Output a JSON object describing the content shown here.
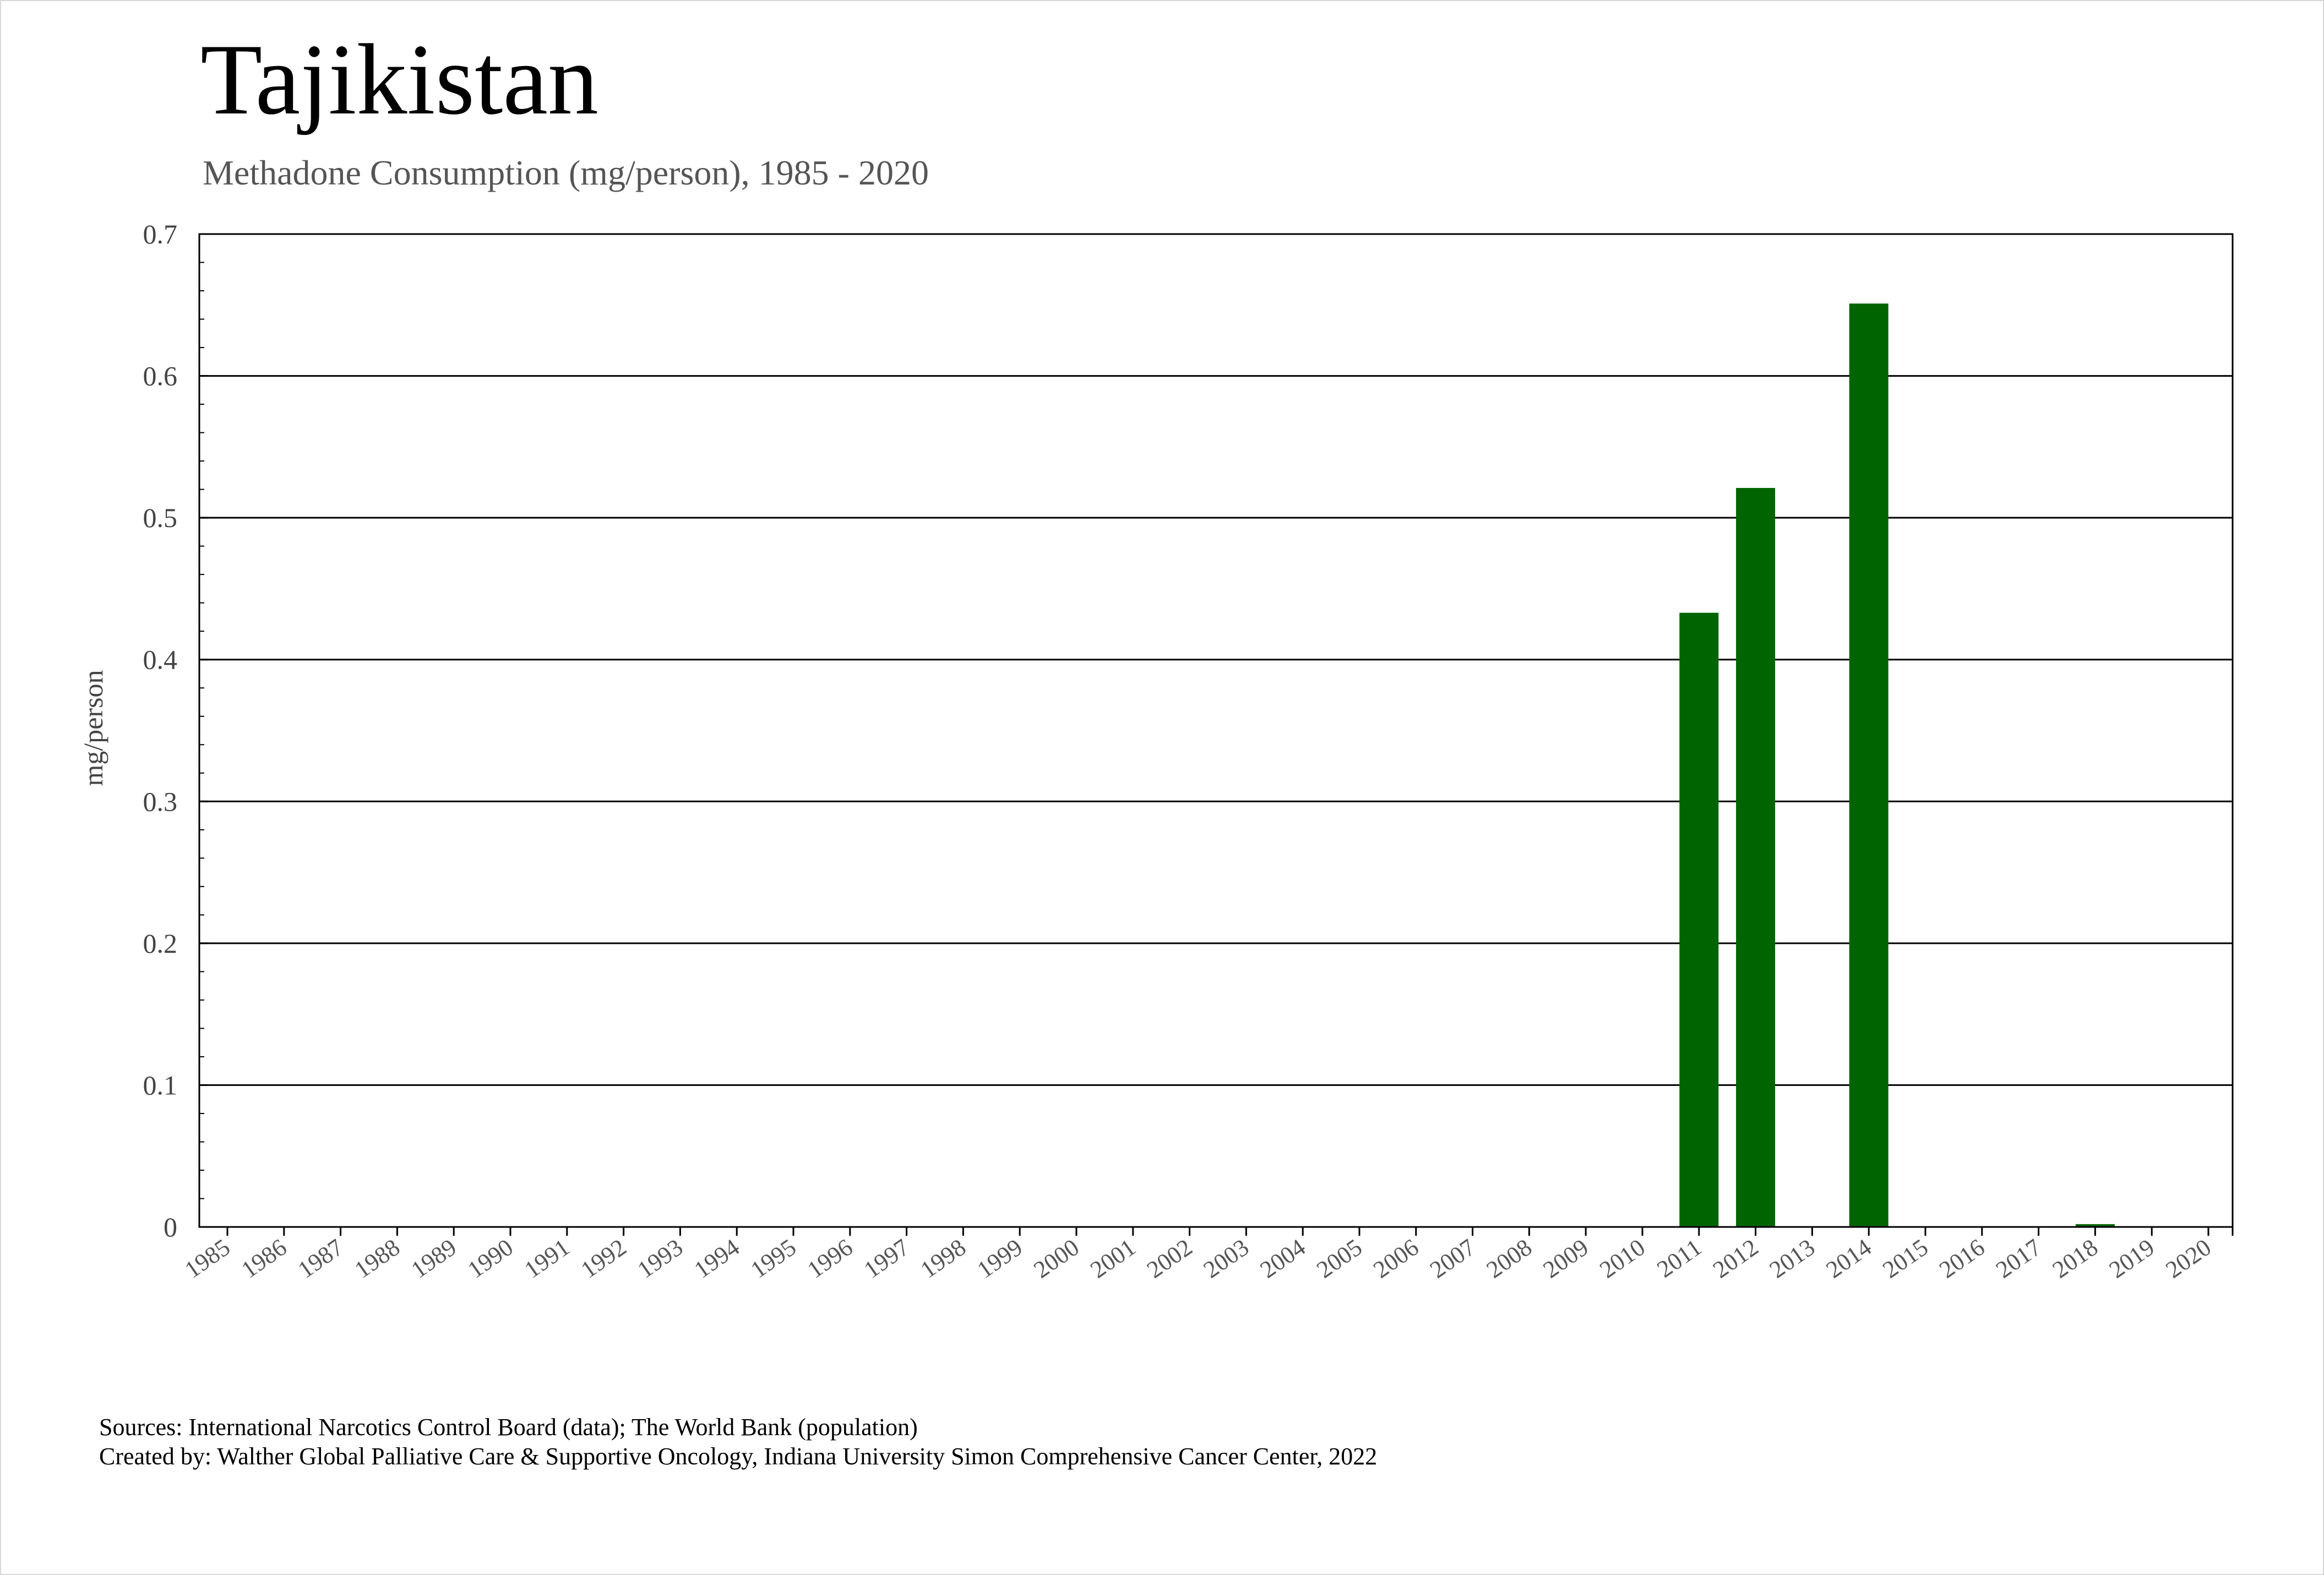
{
  "chart_data": {
    "type": "bar",
    "title": "Tajikistan",
    "subtitle": "Methadone Consumption (mg/person), 1985 - 2020",
    "xlabel": "",
    "ylabel": "mg/person",
    "ylim": [
      0,
      0.7
    ],
    "yticks": [
      "0",
      "0.1",
      "0.2",
      "0.3",
      "0.4",
      "0.5",
      "0.6",
      "0.7"
    ],
    "grid": "horizontal",
    "color": "#006400",
    "categories": [
      "1985",
      "1986",
      "1987",
      "1988",
      "1989",
      "1990",
      "1991",
      "1992",
      "1993",
      "1994",
      "1995",
      "1996",
      "1997",
      "1998",
      "1999",
      "2000",
      "2001",
      "2002",
      "2003",
      "2004",
      "2005",
      "2006",
      "2007",
      "2008",
      "2009",
      "2010",
      "2011",
      "2012",
      "2013",
      "2014",
      "2015",
      "2016",
      "2017",
      "2018",
      "2019",
      "2020"
    ],
    "values": [
      0,
      0,
      0,
      0,
      0,
      0,
      0,
      0,
      0,
      0,
      0,
      0,
      0,
      0,
      0,
      0,
      0,
      0,
      0,
      0,
      0,
      0,
      0,
      0,
      0,
      0,
      0.433,
      0.521,
      0,
      0.651,
      0,
      0,
      0,
      0.002,
      0,
      0
    ]
  },
  "footer": {
    "sources": "Sources: International Narcotics Control Board (data); The World Bank (population)",
    "created_by": "Created by: Walther Global Palliative Care & Supportive Oncology, Indiana University Simon Comprehensive Cancer Center, 2022"
  }
}
